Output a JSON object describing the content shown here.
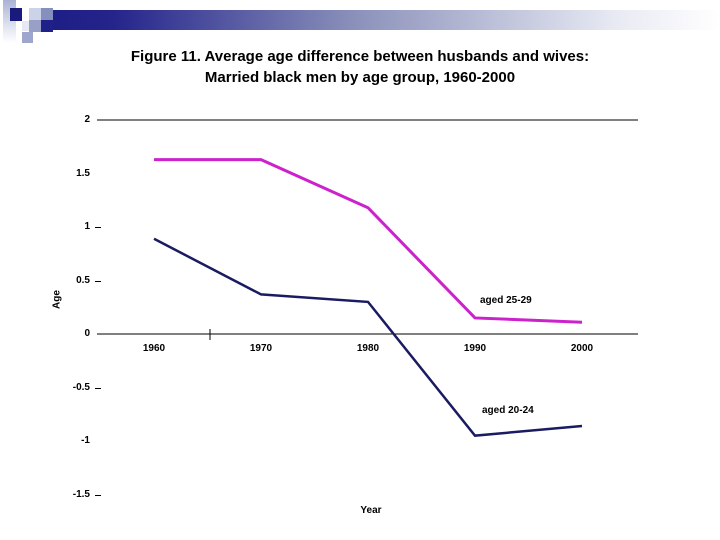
{
  "title": {
    "line1": "Figure 11. Average age difference between husbands and wives:",
    "line2": "Married black men by age group, 1960-2000"
  },
  "chart_data": {
    "type": "line",
    "title": "Figure 11. Average age difference between husbands and wives: Married black men by age group, 1960-2000",
    "xlabel": "Year",
    "ylabel": "Age",
    "x": [
      1960,
      1970,
      1980,
      1990,
      2000
    ],
    "x_tick_labels": [
      "1960",
      "1970",
      "1980",
      "1990",
      "2000"
    ],
    "ylim": [
      -1.5,
      2
    ],
    "y_ticks": [
      {
        "value": 2,
        "label": "2",
        "dash": false
      },
      {
        "value": 1.5,
        "label": "1.5",
        "dash": false
      },
      {
        "value": 1,
        "label": "1",
        "dash": true
      },
      {
        "value": 0.5,
        "label": "0.5",
        "dash": true
      },
      {
        "value": 0,
        "label": "0",
        "dash": false
      },
      {
        "value": -0.5,
        "label": "-0.5",
        "dash": true
      },
      {
        "value": -1,
        "label": "-1",
        "dash": false
      },
      {
        "value": -1.5,
        "label": "-1.5",
        "dash": true
      }
    ],
    "top_gridline_value": 2,
    "grid": "off",
    "legend_position": "inline labels next to lines",
    "axis_color": "#000000",
    "series": [
      {
        "name": "aged 25-29",
        "color": "#cc22cc",
        "values": [
          1.63,
          1.63,
          1.18,
          0.15,
          0.11
        ]
      },
      {
        "name": "aged 20-24",
        "color": "#1b1b62",
        "values": [
          0.89,
          0.37,
          0.3,
          -0.95,
          -0.86
        ]
      }
    ]
  }
}
